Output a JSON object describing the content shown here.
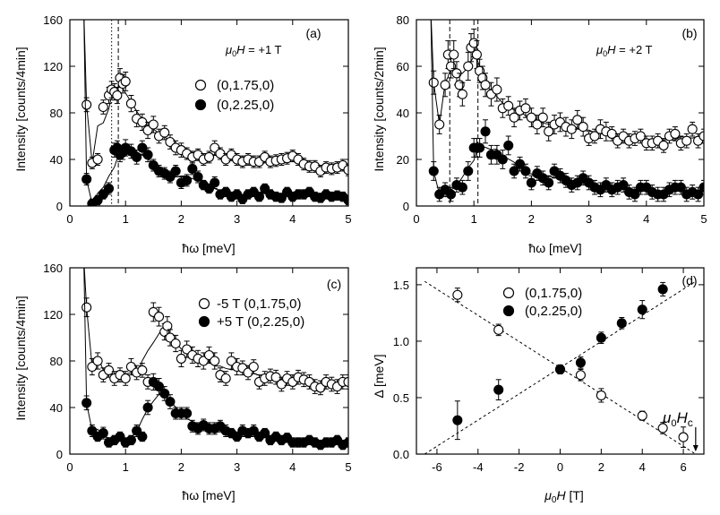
{
  "chart_data": [
    {
      "type": "scatter",
      "panel_label": "(a)",
      "annotation": "μ0H = +1 T",
      "annotation_parts": {
        "sym": "μ",
        "sub": "0",
        "var": "H",
        "rest": " = +1 T"
      },
      "xlabel": "ħω [meV]",
      "ylabel": "Intensity [counts/4min]",
      "xlim": [
        0,
        5
      ],
      "ylim": [
        0,
        160
      ],
      "xticks": [
        0,
        1,
        2,
        3,
        4,
        5
      ],
      "yticks": [
        0,
        40,
        80,
        120,
        160
      ],
      "vlines": [
        {
          "x": 0.75,
          "style": "dotted"
        },
        {
          "x": 0.87,
          "style": "dashed"
        }
      ],
      "series": [
        {
          "name": "(0,1.75,0)",
          "marker": "open",
          "x": [
            0.3,
            0.4,
            0.5,
            0.6,
            0.7,
            0.75,
            0.8,
            0.85,
            0.9,
            0.95,
            1.0,
            1.1,
            1.2,
            1.3,
            1.4,
            1.5,
            1.6,
            1.7,
            1.8,
            1.9,
            2.0,
            2.1,
            2.2,
            2.3,
            2.4,
            2.5,
            2.6,
            2.7,
            2.8,
            2.9,
            3.0,
            3.1,
            3.2,
            3.3,
            3.4,
            3.5,
            3.6,
            3.7,
            3.8,
            3.9,
            4.0,
            4.1,
            4.2,
            4.3,
            4.4,
            4.5,
            4.6,
            4.7,
            4.8,
            4.9,
            5.0
          ],
          "y": [
            87,
            37,
            40,
            85,
            95,
            100,
            98,
            95,
            110,
            105,
            107,
            88,
            75,
            72,
            65,
            70,
            60,
            63,
            55,
            50,
            48,
            45,
            42,
            44,
            40,
            42,
            50,
            45,
            40,
            44,
            40,
            38,
            40,
            38,
            38,
            42,
            38,
            39,
            40,
            41,
            43,
            40,
            36,
            34,
            34,
            30,
            33,
            32,
            33,
            35,
            31
          ],
          "err": [
            6,
            5,
            5,
            6,
            7,
            7,
            7,
            7,
            8,
            8,
            8,
            7,
            7,
            7,
            7,
            7,
            6,
            6,
            6,
            6,
            6,
            5,
            5,
            5,
            5,
            5,
            6,
            5,
            5,
            5,
            5,
            5,
            5,
            5,
            5,
            5,
            5,
            5,
            5,
            5,
            5,
            5,
            5,
            5,
            5,
            5,
            5,
            5,
            5,
            5,
            5
          ],
          "fit_curve": "peak"
        },
        {
          "name": "(0,2.25,0)",
          "marker": "filled",
          "x": [
            0.3,
            0.4,
            0.5,
            0.6,
            0.7,
            0.8,
            0.85,
            0.9,
            0.95,
            1.0,
            1.1,
            1.2,
            1.3,
            1.4,
            1.5,
            1.6,
            1.7,
            1.8,
            1.9,
            2.0,
            2.1,
            2.2,
            2.3,
            2.4,
            2.5,
            2.6,
            2.7,
            2.8,
            2.9,
            3.0,
            3.1,
            3.2,
            3.3,
            3.4,
            3.5,
            3.6,
            3.7,
            3.8,
            3.9,
            4.0,
            4.1,
            4.2,
            4.3,
            4.4,
            4.5,
            4.6,
            4.7,
            4.8,
            4.9,
            5.0
          ],
          "y": [
            23,
            2,
            5,
            10,
            15,
            48,
            50,
            44,
            46,
            50,
            47,
            42,
            50,
            44,
            35,
            30,
            28,
            25,
            30,
            20,
            22,
            32,
            25,
            18,
            15,
            20,
            10,
            12,
            8,
            10,
            6,
            10,
            12,
            8,
            15,
            10,
            8,
            7,
            12,
            8,
            10,
            10,
            12,
            8,
            7,
            10,
            8,
            9,
            8,
            5
          ],
          "err": [
            5,
            4,
            4,
            4,
            5,
            6,
            6,
            6,
            6,
            7,
            6,
            6,
            6,
            6,
            5,
            5,
            5,
            5,
            5,
            5,
            5,
            5,
            5,
            4,
            4,
            5,
            4,
            4,
            4,
            4,
            4,
            4,
            4,
            4,
            4,
            4,
            4,
            4,
            4,
            4,
            4,
            4,
            4,
            4,
            4,
            4,
            4,
            4,
            4,
            4
          ],
          "fit_curve": "peak"
        }
      ]
    },
    {
      "type": "scatter",
      "panel_label": "(b)",
      "annotation": "μ0H = +2 T",
      "annotation_parts": {
        "sym": "μ",
        "sub": "0",
        "var": "H",
        "rest": " = +2 T"
      },
      "xlabel": "ħω [meV]",
      "ylabel": "Intensity [counts/2min]",
      "xlim": [
        0,
        5
      ],
      "ylim": [
        0,
        80
      ],
      "xticks": [
        0,
        1,
        2,
        3,
        4,
        5
      ],
      "yticks": [
        0,
        20,
        40,
        60,
        80
      ],
      "vlines": [
        {
          "x": 0.58,
          "style": "dashed"
        },
        {
          "x": 1.07,
          "style": "dashed"
        }
      ],
      "series": [
        {
          "name": "(0,1.75,0)",
          "marker": "open",
          "x": [
            0.3,
            0.4,
            0.5,
            0.55,
            0.6,
            0.65,
            0.7,
            0.75,
            0.8,
            0.9,
            0.95,
            1.0,
            1.05,
            1.1,
            1.15,
            1.2,
            1.3,
            1.4,
            1.5,
            1.6,
            1.7,
            1.8,
            1.9,
            2.0,
            2.1,
            2.2,
            2.3,
            2.4,
            2.5,
            2.6,
            2.7,
            2.8,
            2.9,
            3.0,
            3.1,
            3.2,
            3.3,
            3.4,
            3.5,
            3.6,
            3.7,
            3.8,
            3.9,
            4.0,
            4.1,
            4.2,
            4.3,
            4.4,
            4.5,
            4.6,
            4.7,
            4.8,
            4.9,
            5.0
          ],
          "y": [
            53,
            35,
            52,
            65,
            60,
            65,
            57,
            52,
            48,
            60,
            68,
            70,
            65,
            58,
            55,
            52,
            48,
            50,
            42,
            43,
            38,
            41,
            42,
            38,
            35,
            38,
            32,
            35,
            36,
            34,
            33,
            37,
            34,
            29,
            30,
            33,
            32,
            31,
            28,
            30,
            28,
            29,
            30,
            27,
            27,
            28,
            26,
            30,
            31,
            27,
            28,
            33,
            28,
            30
          ],
          "err": [
            5,
            4,
            5,
            6,
            5,
            6,
            5,
            5,
            5,
            6,
            6,
            6,
            6,
            5,
            5,
            5,
            5,
            5,
            4,
            4,
            4,
            4,
            4,
            4,
            4,
            4,
            4,
            4,
            4,
            4,
            4,
            4,
            4,
            3,
            3,
            4,
            4,
            3,
            3,
            3,
            3,
            3,
            3,
            3,
            3,
            3,
            3,
            3,
            3,
            3,
            3,
            3,
            3,
            3
          ],
          "fit_curve": "peak"
        },
        {
          "name": "(0,2.25,0)",
          "marker": "filled",
          "x": [
            0.3,
            0.4,
            0.5,
            0.6,
            0.7,
            0.8,
            0.9,
            1.0,
            1.05,
            1.1,
            1.2,
            1.3,
            1.4,
            1.5,
            1.6,
            1.7,
            1.8,
            1.9,
            2.0,
            2.1,
            2.2,
            2.3,
            2.4,
            2.5,
            2.6,
            2.7,
            2.8,
            2.9,
            3.0,
            3.1,
            3.2,
            3.3,
            3.4,
            3.5,
            3.6,
            3.7,
            3.8,
            3.9,
            4.0,
            4.1,
            4.2,
            4.3,
            4.4,
            4.5,
            4.6,
            4.7,
            4.8,
            4.9,
            5.0
          ],
          "y": [
            15,
            5,
            7,
            5,
            9,
            8,
            15,
            25,
            25,
            25,
            32,
            22,
            22,
            20,
            26,
            15,
            18,
            15,
            10,
            14,
            12,
            10,
            15,
            13,
            11,
            9,
            10,
            12,
            10,
            8,
            7,
            9,
            7,
            8,
            9,
            6,
            5,
            8,
            8,
            6,
            5,
            5,
            7,
            8,
            8,
            5,
            6,
            5,
            8
          ],
          "err": [
            4,
            3,
            3,
            3,
            3,
            3,
            4,
            4,
            4,
            4,
            5,
            4,
            4,
            4,
            4,
            3,
            3,
            3,
            3,
            3,
            3,
            3,
            3,
            3,
            3,
            3,
            3,
            3,
            3,
            3,
            3,
            3,
            3,
            3,
            3,
            3,
            3,
            3,
            3,
            3,
            3,
            3,
            3,
            3,
            3,
            3,
            3,
            3,
            3
          ],
          "fit_curve": "peak"
        }
      ]
    },
    {
      "type": "scatter",
      "panel_label": "(c)",
      "xlabel": "ħω [meV]",
      "ylabel": "Intensity [counts/4min]",
      "xlim": [
        0,
        5
      ],
      "ylim": [
        0,
        160
      ],
      "xticks": [
        0,
        1,
        2,
        3,
        4,
        5
      ],
      "yticks": [
        0,
        40,
        80,
        120,
        160
      ],
      "series": [
        {
          "name": "-5 T (0,1.75,0)",
          "marker": "open",
          "x": [
            0.3,
            0.4,
            0.5,
            0.6,
            0.7,
            0.8,
            0.9,
            1.0,
            1.1,
            1.2,
            1.3,
            1.4,
            1.5,
            1.6,
            1.7,
            1.75,
            1.8,
            1.9,
            2.0,
            2.1,
            2.2,
            2.3,
            2.4,
            2.5,
            2.6,
            2.7,
            2.8,
            2.9,
            3.0,
            3.1,
            3.2,
            3.3,
            3.4,
            3.5,
            3.6,
            3.7,
            3.8,
            3.9,
            4.0,
            4.1,
            4.2,
            4.3,
            4.4,
            4.5,
            4.6,
            4.7,
            4.8,
            4.9,
            5.0
          ],
          "y": [
            126,
            75,
            80,
            68,
            72,
            65,
            68,
            65,
            75,
            70,
            72,
            62,
            122,
            118,
            105,
            110,
            100,
            95,
            82,
            90,
            85,
            82,
            80,
            85,
            80,
            68,
            65,
            80,
            75,
            74,
            70,
            75,
            62,
            65,
            67,
            66,
            60,
            65,
            62,
            66,
            64,
            62,
            58,
            57,
            62,
            60,
            58,
            62,
            62
          ],
          "err": [
            8,
            7,
            7,
            6,
            6,
            6,
            6,
            6,
            7,
            6,
            6,
            6,
            8,
            8,
            7,
            8,
            7,
            7,
            7,
            7,
            7,
            7,
            7,
            7,
            7,
            6,
            6,
            7,
            7,
            6,
            6,
            6,
            6,
            6,
            6,
            6,
            6,
            6,
            6,
            6,
            6,
            6,
            6,
            6,
            6,
            6,
            6,
            6,
            6
          ],
          "fit_curve": "peak"
        },
        {
          "name": "+5 T (0,2.25,0)",
          "marker": "filled",
          "x": [
            0.3,
            0.4,
            0.5,
            0.6,
            0.7,
            0.8,
            0.9,
            1.0,
            1.1,
            1.2,
            1.3,
            1.4,
            1.5,
            1.6,
            1.7,
            1.8,
            1.9,
            2.0,
            2.1,
            2.2,
            2.3,
            2.4,
            2.5,
            2.6,
            2.7,
            2.8,
            2.9,
            3.0,
            3.1,
            3.2,
            3.3,
            3.4,
            3.5,
            3.6,
            3.7,
            3.8,
            3.9,
            4.0,
            4.1,
            4.2,
            4.3,
            4.4,
            4.5,
            4.6,
            4.7,
            4.8,
            4.9,
            5.0
          ],
          "y": [
            44,
            20,
            15,
            18,
            10,
            12,
            15,
            10,
            12,
            20,
            15,
            40,
            62,
            58,
            52,
            45,
            35,
            35,
            35,
            24,
            22,
            25,
            22,
            22,
            24,
            20,
            18,
            15,
            20,
            18,
            20,
            15,
            18,
            12,
            15,
            12,
            14,
            10,
            10,
            10,
            12,
            10,
            8,
            10,
            10,
            12,
            8,
            10
          ],
          "err": [
            6,
            5,
            4,
            5,
            4,
            4,
            4,
            4,
            4,
            5,
            4,
            6,
            7,
            7,
            6,
            6,
            5,
            5,
            5,
            5,
            5,
            5,
            5,
            5,
            5,
            5,
            4,
            4,
            5,
            4,
            5,
            4,
            4,
            4,
            4,
            4,
            4,
            4,
            4,
            4,
            4,
            4,
            4,
            4,
            4,
            4,
            4,
            4
          ],
          "fit_curve": "peak"
        }
      ]
    },
    {
      "type": "scatter",
      "panel_label": "(d)",
      "xlabel": "μ0H [T]",
      "xlabel_parts": {
        "sym": "μ",
        "sub": "0",
        "var": "H",
        "rest": " [T]"
      },
      "ylabel": "Δ [meV]",
      "xlim": [
        -7,
        7
      ],
      "ylim": [
        0,
        1.65
      ],
      "xticks": [
        -6,
        -4,
        -2,
        0,
        2,
        4,
        6
      ],
      "yticks": [
        0.0,
        0.5,
        1.0,
        1.5
      ],
      "ytick_labels": [
        "0.0",
        "0.5",
        "1.0",
        "1.5"
      ],
      "hc_label": "μ0Hc",
      "hc_label_parts": {
        "sym": "μ",
        "sub": "0",
        "var": "H",
        "sub2": "c"
      },
      "hc_value": 6.6,
      "series": [
        {
          "name": "(0,1.75,0)",
          "marker": "open",
          "x": [
            -5,
            -3,
            0,
            1,
            2,
            4,
            5,
            6
          ],
          "y": [
            1.41,
            1.1,
            0.75,
            0.7,
            0.52,
            0.34,
            0.23,
            0.15
          ],
          "err": [
            0.06,
            0.05,
            0.04,
            0.05,
            0.06,
            0.04,
            0.05,
            0.09
          ],
          "fit_line": {
            "x": [
              -6.6,
              6.6
            ],
            "y": [
              1.53,
              0.0
            ]
          }
        },
        {
          "name": "(0,2.25,0)",
          "marker": "filled",
          "x": [
            -5,
            -3,
            0,
            1,
            2,
            3,
            4,
            5
          ],
          "y": [
            0.3,
            0.57,
            0.75,
            0.81,
            1.03,
            1.16,
            1.28,
            1.46
          ],
          "err": [
            0.17,
            0.09,
            0.04,
            0.05,
            0.05,
            0.05,
            0.08,
            0.06
          ],
          "fit_line": {
            "x": [
              -6.6,
              6.6
            ],
            "y": [
              0.0,
              1.53
            ]
          }
        }
      ]
    }
  ]
}
